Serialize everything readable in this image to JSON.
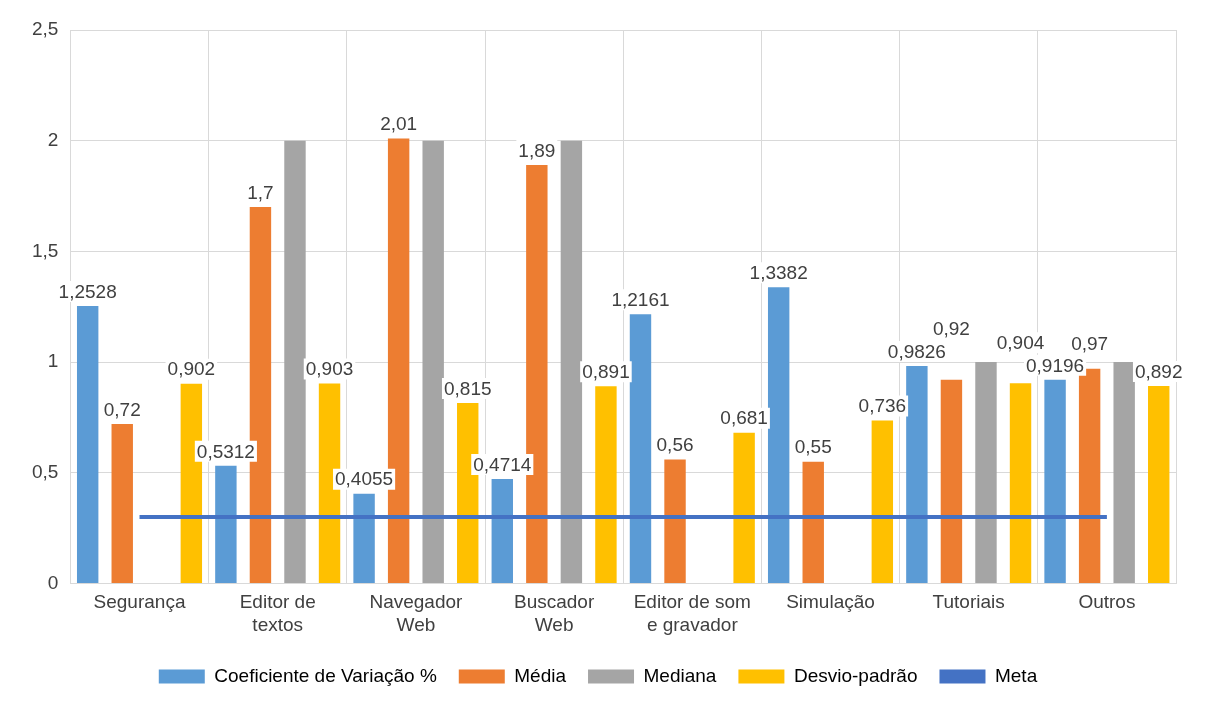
{
  "chart_data": {
    "type": "bar",
    "categories": [
      "Segurança",
      "Editor de textos",
      "Navegador Web",
      "Buscador Web",
      "Editor de som e gravador",
      "Simulação",
      "Tutoriais",
      "Outros"
    ],
    "series": [
      {
        "name": "Coeficiente de Variação %",
        "color": "#5b9bd5",
        "values": [
          1.2528,
          0.5312,
          0.4055,
          0.4714,
          1.2161,
          1.3382,
          0.9826,
          0.9196
        ],
        "value_labels": [
          "1,2528",
          "0,5312",
          "0,4055",
          "0,4714",
          "1,2161",
          "1,3382",
          "0,9826",
          "0,9196"
        ]
      },
      {
        "name": "Média",
        "color": "#ed7d31",
        "values": [
          0.72,
          1.7,
          2.01,
          1.89,
          0.56,
          0.55,
          0.92,
          0.97
        ],
        "value_labels": [
          "0,72",
          "1,7",
          "2,01",
          "1,89",
          "0,56",
          "0,55",
          "0,92",
          "0,97"
        ]
      },
      {
        "name": "Mediana",
        "color": "#a5a5a5",
        "values": [
          null,
          2,
          2,
          2,
          null,
          null,
          1,
          1
        ]
      },
      {
        "name": "Desvio-padrão",
        "color": "#ffc000",
        "values": [
          0.902,
          0.903,
          0.815,
          0.891,
          0.681,
          0.736,
          0.904,
          0.892
        ],
        "value_labels": [
          "0,902",
          "0,903",
          "0,815",
          "0,891",
          "0,681",
          "0,736",
          "0,904",
          "0,892"
        ]
      },
      {
        "name": "Meta",
        "type": "line",
        "color": "#4472c4",
        "values": [
          0.3,
          0.3,
          0.3,
          0.3,
          0.3,
          0.3,
          0.3,
          0.3
        ]
      }
    ],
    "ylim": [
      0,
      2.5
    ],
    "yticks": [
      {
        "value": 0,
        "label": "0"
      },
      {
        "value": 0.5,
        "label": "0,5"
      },
      {
        "value": 1,
        "label": "1"
      },
      {
        "value": 1.5,
        "label": "1,5"
      },
      {
        "value": 2,
        "label": "2"
      },
      {
        "value": 2.5,
        "label": "2,5"
      }
    ],
    "grid": true,
    "legend": "bottom",
    "marker": "none"
  }
}
